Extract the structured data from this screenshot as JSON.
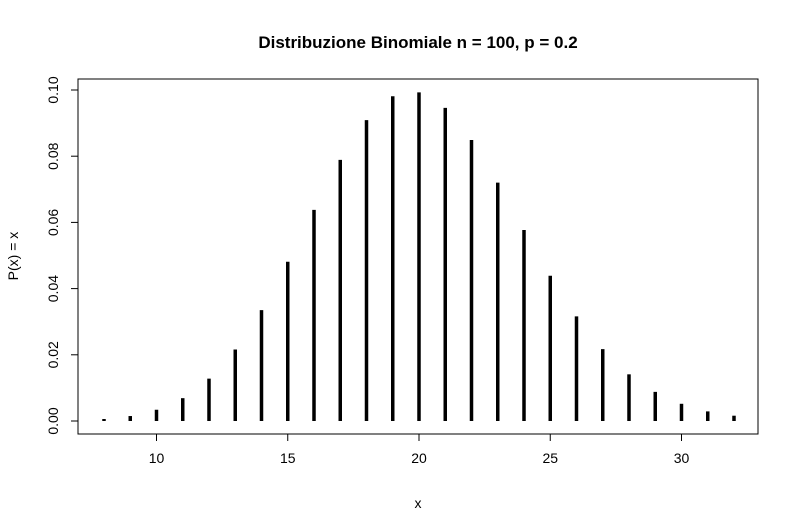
{
  "chart_data": {
    "type": "bar",
    "title": "Distribuzione Binomiale n = 100, p = 0.2",
    "xlabel": "x",
    "ylabel": "P(x) = x",
    "x": [
      8,
      9,
      10,
      11,
      12,
      13,
      14,
      15,
      16,
      17,
      18,
      19,
      20,
      21,
      22,
      23,
      24,
      25,
      26,
      27,
      28,
      29,
      30,
      31,
      32
    ],
    "values": [
      0.0006,
      0.0015,
      0.0034,
      0.0069,
      0.0128,
      0.0216,
      0.0335,
      0.0481,
      0.0638,
      0.0789,
      0.0909,
      0.0981,
      0.0993,
      0.0946,
      0.0849,
      0.072,
      0.0577,
      0.0439,
      0.0316,
      0.0217,
      0.0141,
      0.0088,
      0.0052,
      0.0029,
      0.0016
    ],
    "xlim": [
      8,
      32
    ],
    "ylim": [
      0,
      0.1
    ],
    "xticks": [
      "10",
      "15",
      "20",
      "25",
      "30"
    ],
    "yticks": [
      "0.00",
      "0.02",
      "0.04",
      "0.06",
      "0.08",
      "0.10"
    ],
    "grid": false,
    "bar_color": "#000000"
  }
}
